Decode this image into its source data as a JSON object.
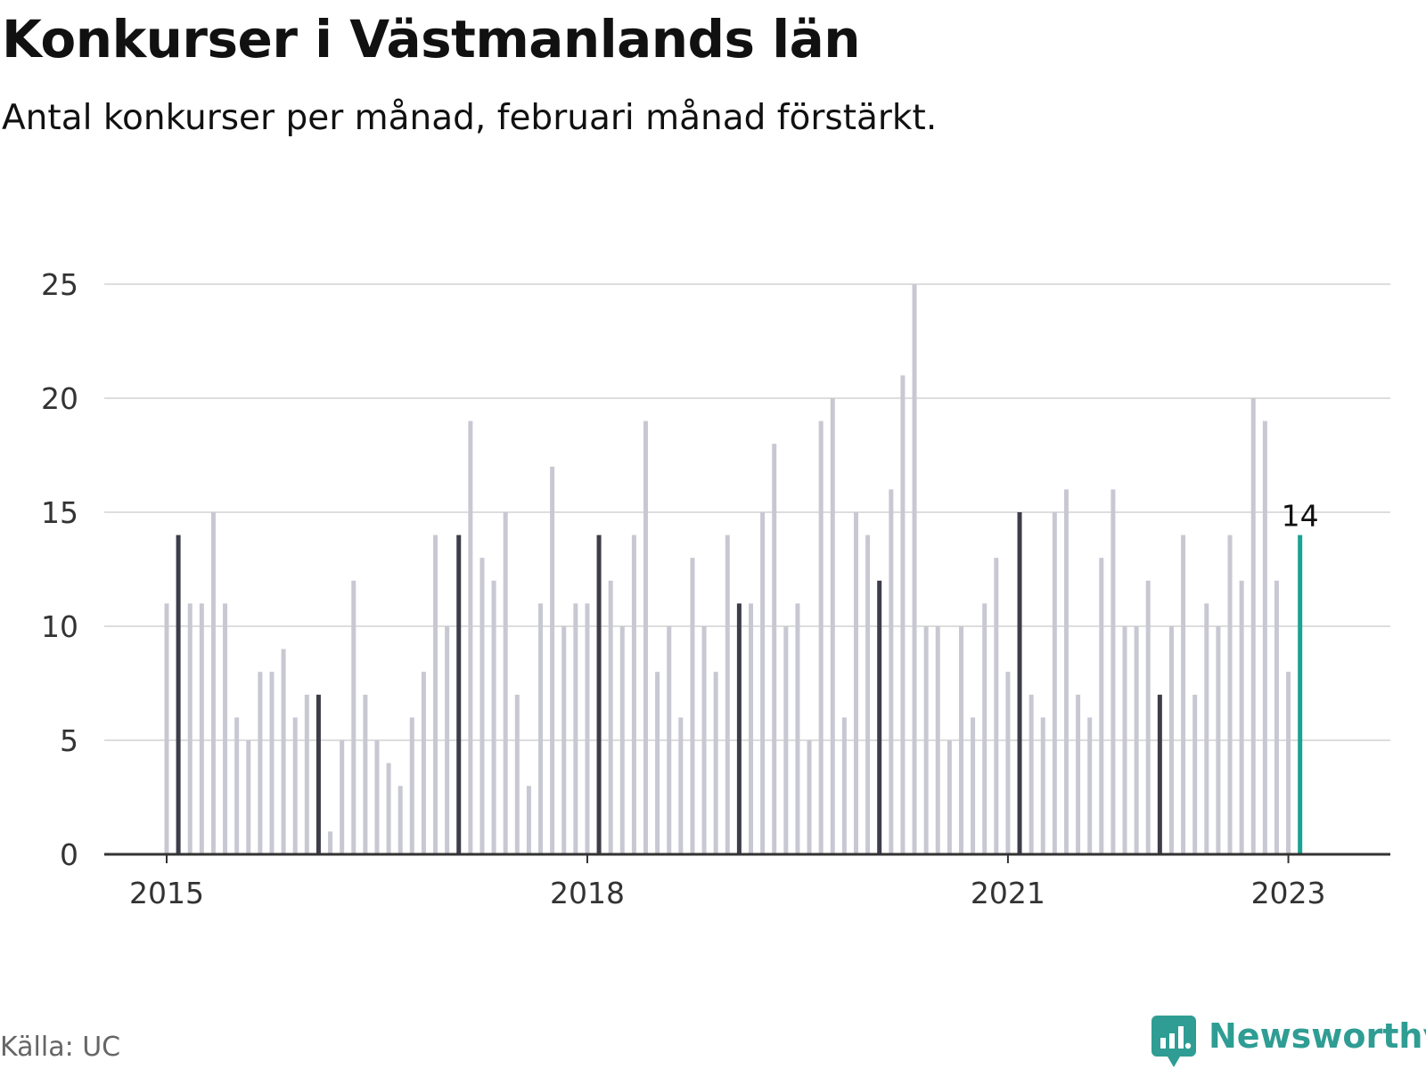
{
  "title": "Konkurser i Västmanlands län",
  "subtitle": "Antal konkurser per månad, februari månad förstärkt.",
  "source": "Källa: UC",
  "brand": "Newsworthy",
  "colors": {
    "bar": "#c8c8d2",
    "highlight": "#3d3d4a",
    "latest": "#1aa392",
    "grid": "#dddddd",
    "axis": "#333333",
    "brand": "#2f9d93"
  },
  "chart_data": {
    "type": "bar",
    "title": "Konkurser i Västmanlands län",
    "subtitle": "Antal konkurser per månad, februari månad förstärkt.",
    "xlabel": "",
    "ylabel": "",
    "ylim": [
      0,
      25
    ],
    "yticks": [
      0,
      5,
      10,
      15,
      20,
      25
    ],
    "xticks": [
      "2015",
      "2018",
      "2021",
      "2023"
    ],
    "grid": true,
    "start": "2015-01",
    "end": "2023-02",
    "highlight_month": "februari",
    "annotation": {
      "label": "14",
      "month": "2023-02"
    },
    "values": [
      11,
      14,
      11,
      11,
      15,
      11,
      6,
      5,
      8,
      8,
      9,
      6,
      7,
      7,
      1,
      5,
      12,
      7,
      5,
      4,
      3,
      6,
      8,
      14,
      10,
      14,
      19,
      13,
      12,
      15,
      7,
      3,
      11,
      17,
      10,
      11,
      11,
      14,
      12,
      10,
      14,
      19,
      8,
      10,
      6,
      13,
      10,
      8,
      14,
      11,
      11,
      15,
      18,
      10,
      11,
      5,
      19,
      20,
      6,
      15,
      14,
      12,
      16,
      21,
      25,
      10,
      10,
      5,
      10,
      6,
      11,
      13,
      8,
      15,
      7,
      6,
      15,
      16,
      7,
      6,
      13,
      16,
      10,
      10,
      12,
      7,
      10,
      14,
      7,
      11,
      10,
      14,
      12,
      20,
      19,
      12,
      8,
      14
    ]
  }
}
